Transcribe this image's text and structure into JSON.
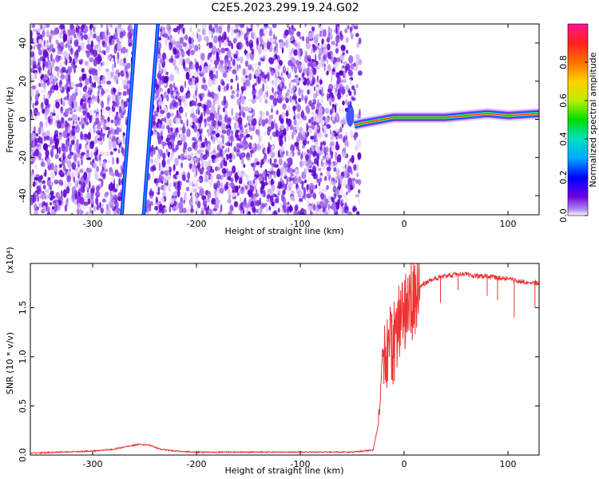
{
  "title": "C2E5.2023.299.19.24.G02",
  "chart_data": [
    {
      "type": "heatmap",
      "xlabel": "Height of straight line (km)",
      "ylabel": "Frequency (Hz)",
      "xlim": [
        -360,
        130
      ],
      "ylim": [
        -50,
        50
      ],
      "xticks": [
        -300,
        -200,
        -100,
        0,
        100
      ],
      "xtick_labels": [
        "-300",
        "-200",
        "-100",
        "0",
        "100"
      ],
      "yticks": [
        -40,
        -20,
        0,
        20,
        40
      ],
      "ytick_labels": [
        "-40",
        "-20",
        "0",
        "20",
        "40"
      ],
      "colorbar": {
        "label": "Normalized spectral amplitude",
        "range": [
          0,
          1
        ],
        "ticks": [
          0.0,
          0.2,
          0.4,
          0.6,
          0.8
        ],
        "tick_labels": [
          "0.0",
          "0.2",
          "0.4",
          "0.6",
          "0.8"
        ]
      },
      "features": {
        "noise_region_x": [
          -360,
          -50
        ],
        "diagonal_stripes": [
          {
            "x_at_freq_min": -272,
            "x_at_freq_max": -258
          },
          {
            "x_at_freq_min": -251,
            "x_at_freq_max": -237
          }
        ],
        "signal_track": {
          "x": [
            -48,
            -40,
            -30,
            -20,
            -10,
            0,
            20,
            40,
            60,
            80,
            100,
            130
          ],
          "frequency": [
            -3,
            -2,
            -1,
            0,
            1,
            1,
            1,
            1,
            2,
            3,
            2,
            3
          ]
        }
      },
      "grid": false
    },
    {
      "type": "line",
      "xlabel": "Height of straight line (km)",
      "ylabel": "SNR (10 * v/v)",
      "y_multiplier_label": "(x10⁴)",
      "xlim": [
        -360,
        130
      ],
      "ylim": [
        0,
        1.95
      ],
      "xticks": [
        -300,
        -200,
        -100,
        0,
        100
      ],
      "xtick_labels": [
        "-300",
        "-200",
        "-100",
        "0",
        "100"
      ],
      "yticks": [
        0.0,
        0.5,
        1.0,
        1.5
      ],
      "ytick_labels": [
        "0.0",
        "0.5",
        "1.0",
        "1.5"
      ],
      "series": [
        {
          "color": "#ee3333",
          "x": [
            -360,
            -330,
            -300,
            -280,
            -265,
            -255,
            -245,
            -235,
            -220,
            -200,
            -150,
            -100,
            -50,
            -30,
            -25,
            -22,
            -20,
            -15,
            -10,
            -5,
            0,
            5,
            10,
            20,
            30,
            40,
            50,
            60,
            70,
            80,
            90,
            100,
            110,
            120,
            130
          ],
          "y": [
            0.02,
            0.03,
            0.04,
            0.06,
            0.09,
            0.11,
            0.1,
            0.06,
            0.04,
            0.03,
            0.03,
            0.03,
            0.03,
            0.05,
            0.3,
            0.75,
            1.0,
            1.05,
            1.15,
            1.3,
            1.5,
            1.55,
            1.65,
            1.75,
            1.8,
            1.82,
            1.84,
            1.84,
            1.82,
            1.82,
            1.8,
            1.79,
            1.77,
            1.76,
            1.75
          ]
        }
      ],
      "grid": false
    }
  ]
}
